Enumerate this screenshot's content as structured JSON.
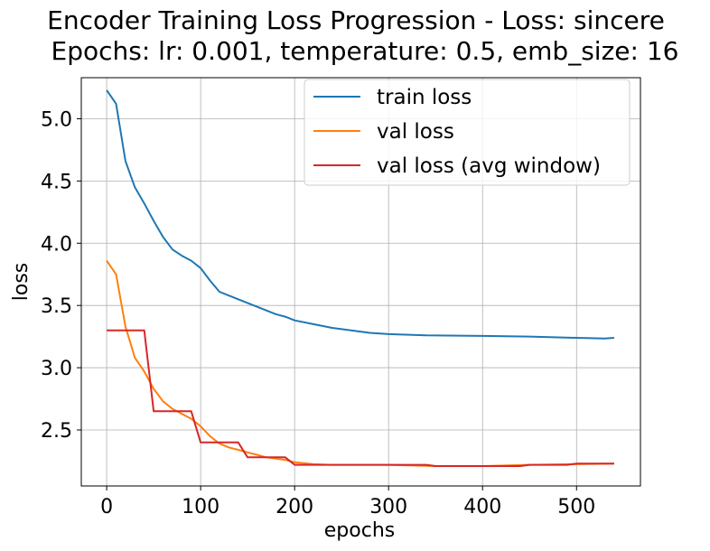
{
  "chart_data": {
    "type": "line",
    "title_line1": "Encoder Training Loss Progression - Loss: sincere",
    "title_line2": "Epochs: lr: 0.001, temperature: 0.5, emb_size: 16",
    "xlabel": "epochs",
    "ylabel": "loss",
    "xlim": [
      -27,
      568
    ],
    "ylim": [
      2.05,
      5.33
    ],
    "xticks": [
      0,
      100,
      200,
      300,
      400,
      500
    ],
    "yticks": [
      2.5,
      3.0,
      3.5,
      4.0,
      4.5,
      5.0
    ],
    "xtick_labels": [
      "0",
      "100",
      "200",
      "300",
      "400",
      "500"
    ],
    "ytick_labels": [
      "2.5",
      "3.0",
      "3.5",
      "4.0",
      "4.5",
      "5.0"
    ],
    "grid": true,
    "legend_position": "upper right",
    "series": [
      {
        "name": "train loss",
        "color": "#1f77b4",
        "x": [
          0,
          10,
          20,
          30,
          40,
          50,
          60,
          70,
          80,
          90,
          100,
          110,
          120,
          130,
          140,
          150,
          160,
          170,
          180,
          190,
          200,
          220,
          240,
          260,
          280,
          300,
          340,
          400,
          450,
          500,
          530,
          540
        ],
        "y": [
          5.23,
          5.12,
          4.66,
          4.45,
          4.32,
          4.18,
          4.05,
          3.95,
          3.9,
          3.86,
          3.8,
          3.7,
          3.61,
          3.58,
          3.55,
          3.52,
          3.49,
          3.46,
          3.43,
          3.41,
          3.38,
          3.35,
          3.32,
          3.3,
          3.28,
          3.27,
          3.26,
          3.255,
          3.25,
          3.24,
          3.235,
          3.24
        ]
      },
      {
        "name": "val loss",
        "color": "#ff7f0e",
        "x": [
          0,
          10,
          20,
          30,
          40,
          50,
          60,
          70,
          80,
          90,
          100,
          110,
          120,
          130,
          140,
          150,
          160,
          170,
          180,
          190,
          200,
          220,
          240,
          260,
          280,
          300,
          350,
          400,
          450,
          500,
          540
        ],
        "y": [
          3.86,
          3.75,
          3.33,
          3.08,
          2.97,
          2.83,
          2.73,
          2.67,
          2.63,
          2.59,
          2.53,
          2.45,
          2.39,
          2.36,
          2.34,
          2.32,
          2.3,
          2.28,
          2.27,
          2.26,
          2.24,
          2.225,
          2.22,
          2.22,
          2.22,
          2.22,
          2.21,
          2.21,
          2.22,
          2.225,
          2.23
        ]
      },
      {
        "name": "val loss (avg window)",
        "color": "#d62728",
        "x": [
          0,
          40,
          50,
          90,
          100,
          140,
          150,
          190,
          200,
          240,
          250,
          290,
          300,
          340,
          350,
          390,
          400,
          440,
          450,
          490,
          500,
          540
        ],
        "y": [
          3.3,
          3.3,
          2.65,
          2.65,
          2.4,
          2.4,
          2.28,
          2.28,
          2.22,
          2.22,
          2.22,
          2.22,
          2.22,
          2.22,
          2.21,
          2.21,
          2.21,
          2.21,
          2.22,
          2.22,
          2.23,
          2.23
        ]
      }
    ]
  }
}
